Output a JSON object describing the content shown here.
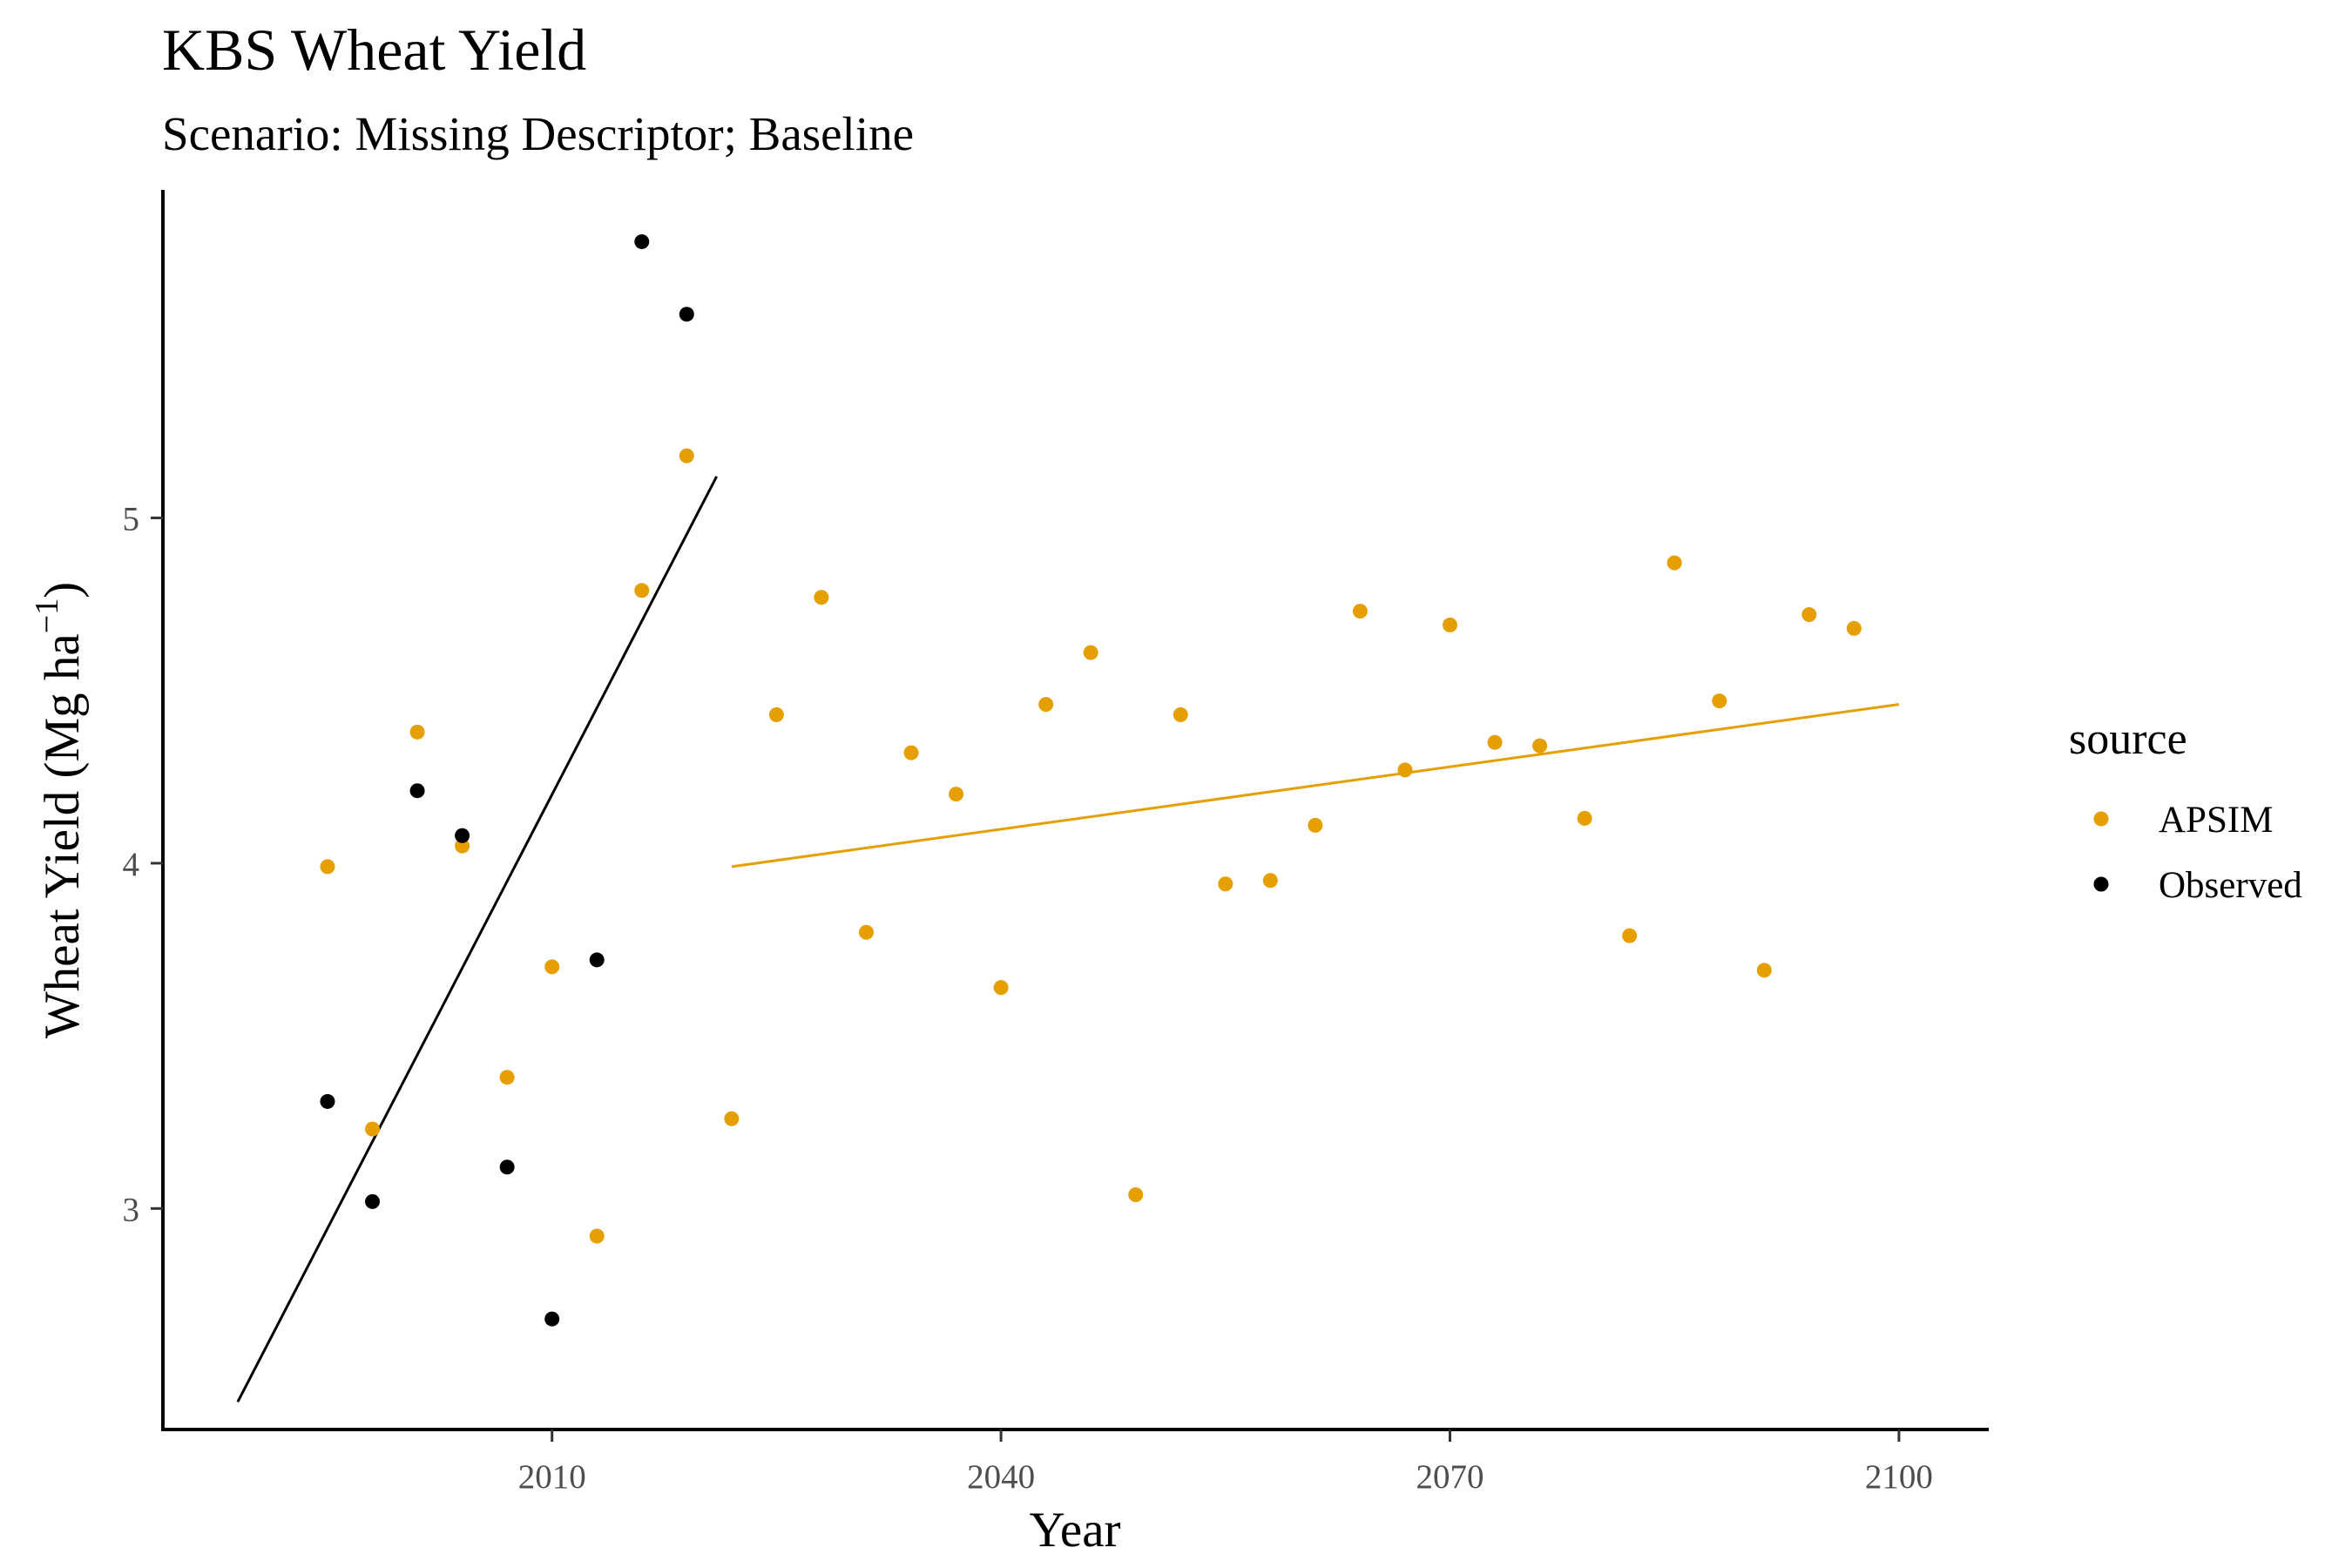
{
  "chart_data": {
    "type": "scatter",
    "title": "KBS Wheat Yield",
    "subtitle": "Scenario: Missing Descriptor; Baseline",
    "xlabel": "Year",
    "ylabel": "Wheat Yield (Mg ha",
    "ylabel_superscript": "−1",
    "ylabel_close": ")",
    "xlim": [
      1984,
      2106
    ],
    "ylim": [
      2.36,
      5.95
    ],
    "x_ticks": [
      2010,
      2040,
      2070,
      2100
    ],
    "y_ticks": [
      3,
      4,
      5
    ],
    "grid": false,
    "legend": {
      "title": "source",
      "placement": "right",
      "entries": [
        "APSIM",
        "Observed"
      ]
    },
    "series": [
      {
        "name": "APSIM",
        "color": "#E69F00",
        "x": [
          1995,
          1998,
          2001,
          2004,
          2007,
          2010,
          2013,
          2016,
          2019,
          2022,
          2025,
          2028,
          2031,
          2034,
          2037,
          2040,
          2043,
          2046,
          2049,
          2052,
          2055,
          2058,
          2061,
          2064,
          2067,
          2070,
          2073,
          2076,
          2079,
          2082,
          2085,
          2088,
          2091,
          2094,
          2097
        ],
        "y": [
          3.99,
          3.23,
          4.38,
          4.05,
          3.38,
          3.7,
          2.92,
          4.79,
          5.18,
          3.26,
          4.43,
          4.77,
          3.8,
          4.32,
          4.2,
          3.64,
          4.46,
          4.61,
          3.04,
          4.43,
          3.94,
          3.95,
          4.11,
          4.73,
          4.27,
          4.69,
          4.35,
          4.34,
          4.13,
          3.79,
          4.87,
          4.47,
          3.69,
          4.72,
          4.68
        ]
      },
      {
        "name": "Observed",
        "color": "#000000",
        "x": [
          1995,
          1998,
          2001,
          2004,
          2007,
          2010,
          2013,
          2016,
          2019
        ],
        "y": [
          3.31,
          3.02,
          4.21,
          4.08,
          3.12,
          2.68,
          3.72,
          5.8,
          5.59
        ]
      }
    ],
    "trend_lines": [
      {
        "series": "Observed",
        "color": "#000000",
        "x": [
          1989,
          2021
        ],
        "y": [
          2.44,
          5.12
        ]
      },
      {
        "series": "APSIM",
        "color": "#E69F00",
        "x": [
          2022,
          2100
        ],
        "y": [
          3.99,
          4.46
        ]
      }
    ]
  }
}
